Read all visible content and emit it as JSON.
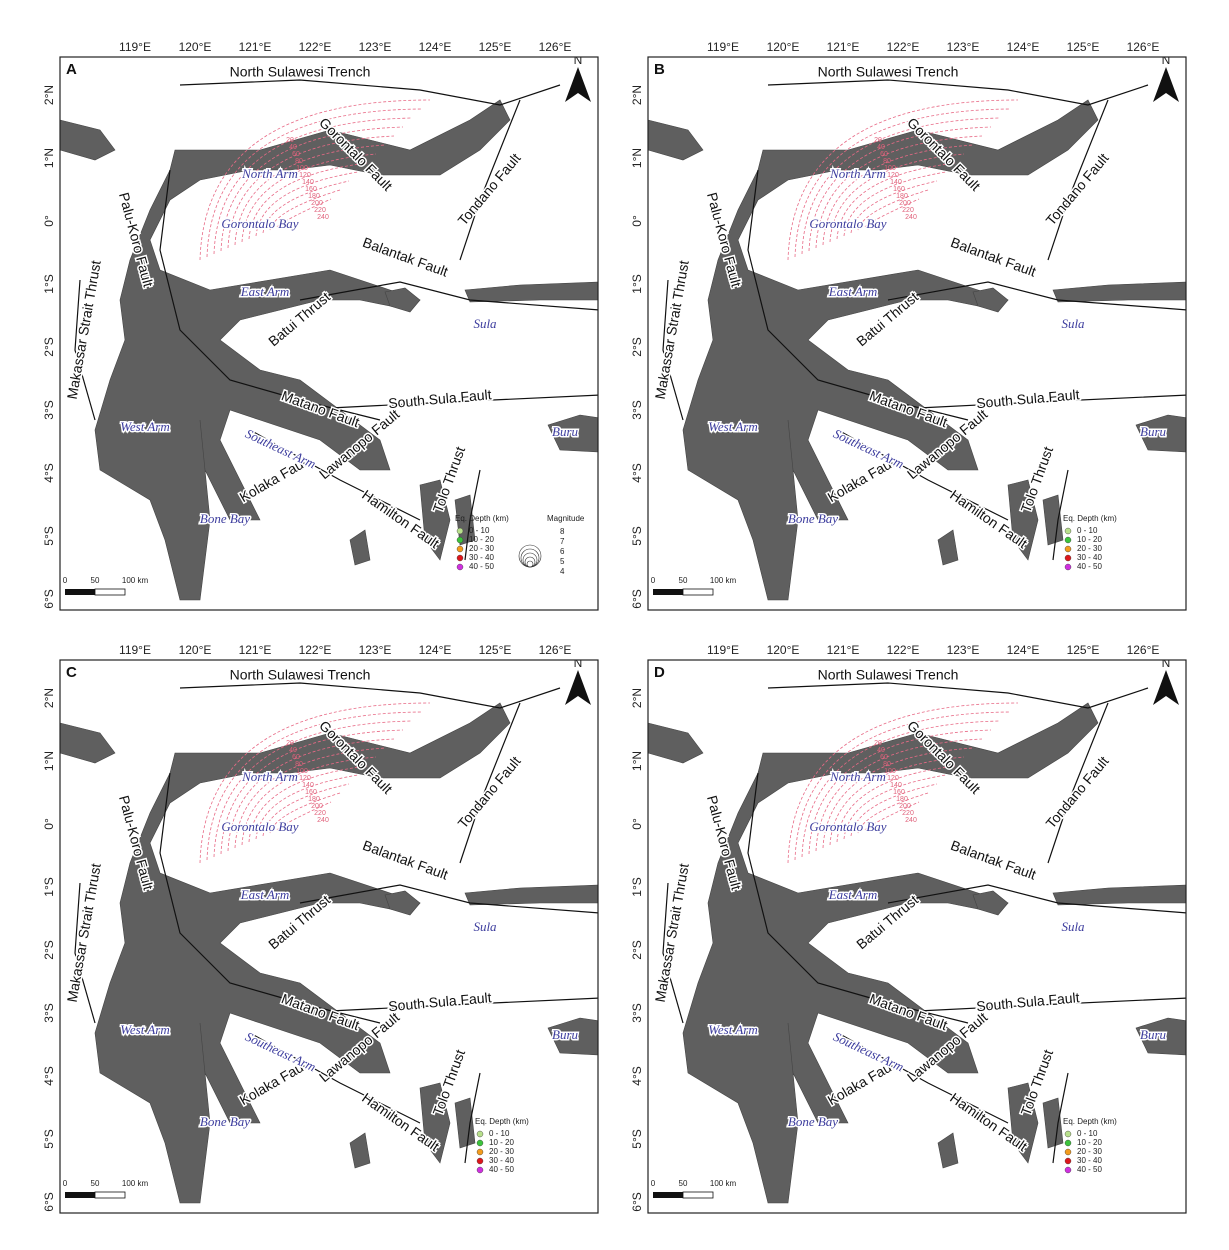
{
  "panels": [
    {
      "label": "A",
      "magnitude_legend": {
        "title": "Magnitude",
        "labels": [
          "8",
          "7",
          "6",
          "5",
          "4"
        ]
      }
    },
    {
      "label": "B"
    },
    {
      "label": "C"
    },
    {
      "label": "D"
    }
  ],
  "lon_ticks": [
    "119°E",
    "120°E",
    "121°E",
    "122°E",
    "123°E",
    "124°E",
    "125°E",
    "126°E"
  ],
  "lat_ticks": [
    "2°N",
    "1°N",
    "0°",
    "1°S",
    "2°S",
    "3°S",
    "4°S",
    "5°S",
    "6°S"
  ],
  "places": [
    "North Sulawesi Trench",
    "Gorontalo Fault",
    "Tondano Fault",
    "Palu-Koro Fault",
    "Makassar Strait Thrust",
    "Balantak Fault",
    "Batui Thrust",
    "Matano Fault",
    "South Sula Fault",
    "Lawanopo Fault",
    "Kolaka Fault",
    "Tolo Thrust",
    "Hamilton Fault"
  ],
  "areas": [
    "North Arm",
    "Gorontalo Bay",
    "East Arm",
    "Sula",
    "West Arm",
    "Southeast Arm",
    "Buru",
    "Bone Bay"
  ],
  "contour_labels": [
    "20",
    "40",
    "60",
    "80",
    "100",
    "120",
    "140",
    "160",
    "180",
    "200",
    "220",
    "240"
  ],
  "north": "N",
  "scale_bar": [
    "0",
    "50",
    "100 km"
  ],
  "depth_legend": {
    "title": "Eq. Depth (km)",
    "classes": [
      {
        "label": "0 - 10",
        "color": "#b8e08c"
      },
      {
        "label": "10 - 20",
        "color": "#3cc43c"
      },
      {
        "label": "20 - 30",
        "color": "#f39c1d"
      },
      {
        "label": "30 - 40",
        "color": "#de161c"
      },
      {
        "label": "40 - 50",
        "color": "#d030e0"
      }
    ]
  }
}
